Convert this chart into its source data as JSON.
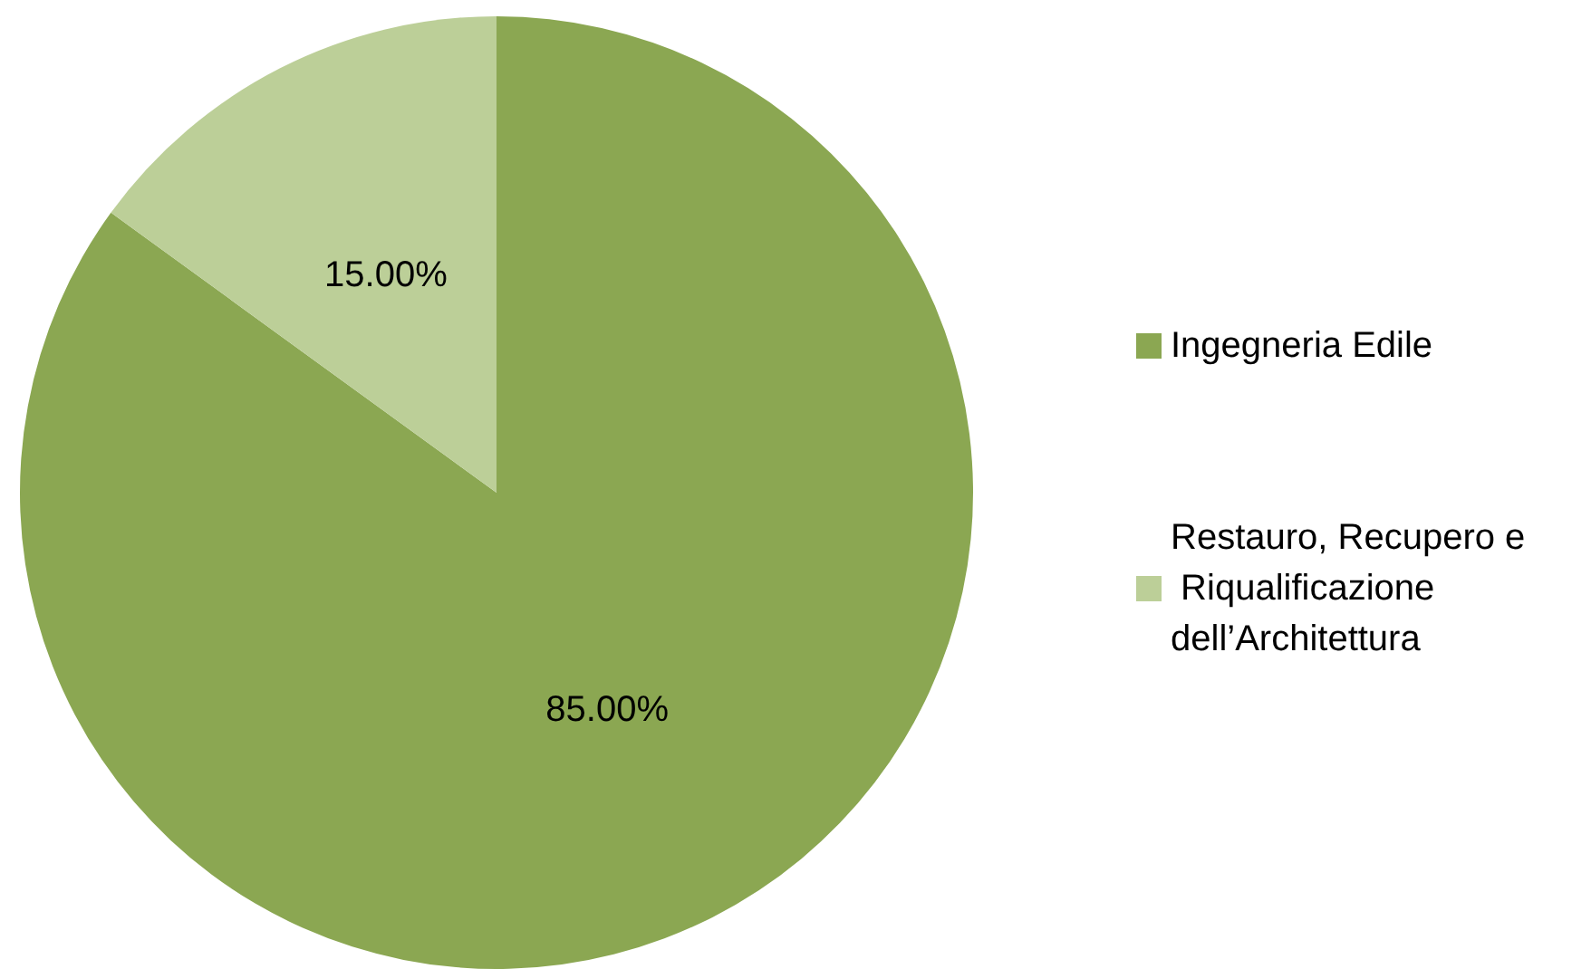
{
  "chart_data": {
    "type": "pie",
    "categories": [
      "Ingegneria Edile",
      "Restauro, Recupero e Riqualificazione dell’Architettura"
    ],
    "values": [
      85,
      15
    ],
    "colors": [
      "#8ba752",
      "#bccf98"
    ],
    "value_labels": [
      "85.00%",
      "15.00%"
    ],
    "legend": "right"
  }
}
